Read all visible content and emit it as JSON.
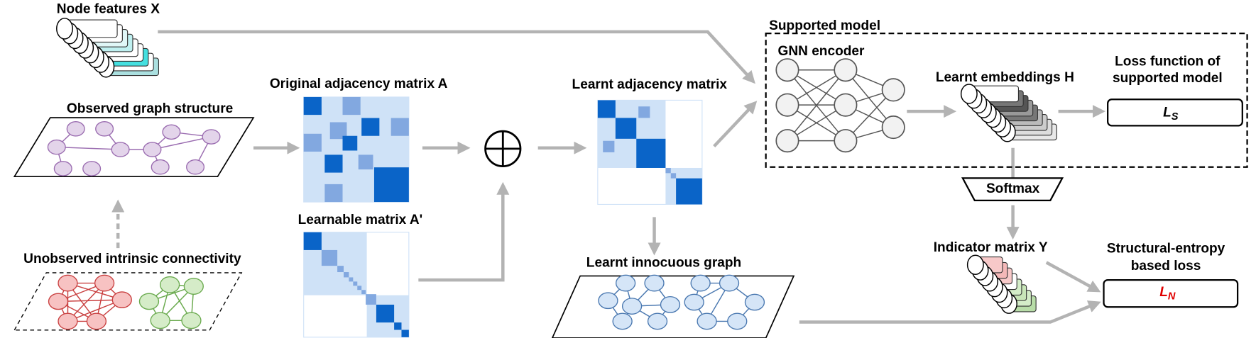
{
  "labels": {
    "node_features": "Node features X",
    "observed_graph": "Observed graph structure",
    "unobserved": "Unobserved intrinsic connectivity",
    "original_adjacency": "Original adjacency matrix A",
    "learnable_matrix": "Learnable matrix A'",
    "learnt_adjacency": "Learnt adjacency matrix",
    "learnt_graph": "Learnt innocuous graph",
    "supported_model": "Supported model",
    "gnn_encoder": "GNN encoder",
    "learnt_embeddings": "Learnt embeddings H",
    "loss_function": [
      "Loss function of",
      "supported model"
    ],
    "softmax": "Softmax",
    "indicator_matrix": "Indicator matrix Y",
    "structural_loss": [
      "Structural-entropy",
      "based loss"
    ],
    "loss_s": {
      "main": "L",
      "sub": "S"
    },
    "loss_n": {
      "main": "L",
      "sub": "N"
    }
  }
}
